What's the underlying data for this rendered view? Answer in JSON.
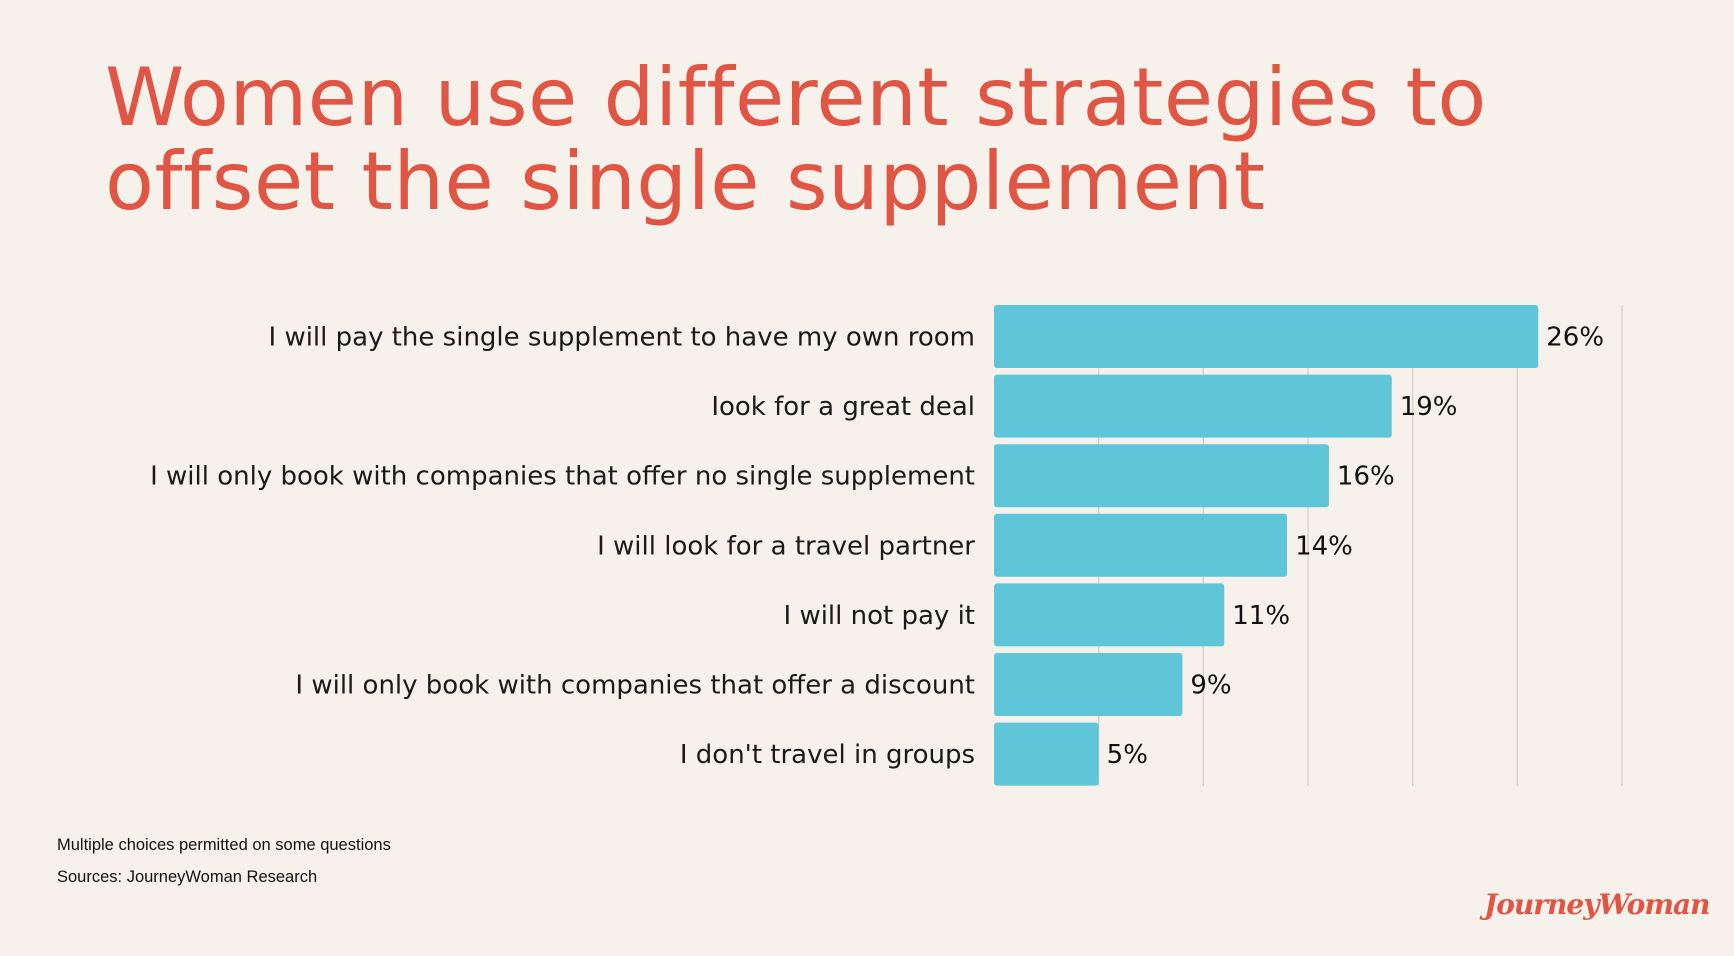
{
  "title_lines": [
    "Women use different strategies to",
    "offset the single supplement"
  ],
  "chart_data": {
    "type": "bar",
    "orientation": "horizontal",
    "title": "Women use different strategies to offset the single supplement",
    "categories": [
      "I will pay the single supplement to have my own room",
      "Iook for a great deal",
      "I will only book with companies that offer no single supplement",
      "I will look for a travel partner",
      "I will not pay it",
      "I will only book with companies that offer a discount",
      "I don't travel in groups"
    ],
    "values": [
      26,
      19,
      16,
      14,
      11,
      9,
      5
    ],
    "data_labels": [
      "26%",
      "19%",
      "16%",
      "14%",
      "11%",
      "9%",
      "5%"
    ],
    "xlim": [
      0,
      30
    ],
    "grid_step": 5,
    "grid": true,
    "bar_color": "#5ec6d8",
    "title_color": "#e05543"
  },
  "footnotes": {
    "note": "Multiple choices permitted  on some questions",
    "source": "Sources: JourneyWoman Research"
  },
  "logo": "JourneyWoman"
}
